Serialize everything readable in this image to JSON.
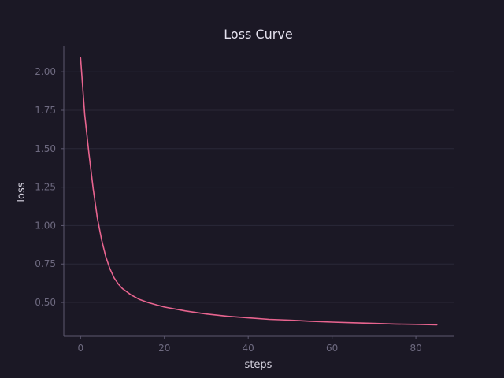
{
  "chart_data": {
    "type": "line",
    "title": "Loss Curve",
    "xlabel": "steps",
    "ylabel": "loss",
    "xlim": [
      -4,
      89
    ],
    "ylim": [
      0.28,
      2.17
    ],
    "xticks": [
      0,
      20,
      40,
      60,
      80
    ],
    "yticks": [
      0.5,
      0.75,
      1.0,
      1.25,
      1.5,
      1.75,
      2.0
    ],
    "xtick_labels": [
      "0",
      "20",
      "40",
      "60",
      "80"
    ],
    "ytick_labels": [
      "0.50",
      "0.75",
      "1.00",
      "1.25",
      "1.50",
      "1.75",
      "2.00"
    ],
    "grid": "horizontal",
    "series": [
      {
        "name": "loss",
        "color": "#e8648f",
        "x": [
          0,
          1,
          2,
          3,
          4,
          5,
          6,
          7,
          8,
          9,
          10,
          12,
          14,
          16,
          18,
          20,
          25,
          30,
          35,
          40,
          45,
          50,
          55,
          60,
          65,
          70,
          75,
          80,
          85
        ],
        "y": [
          2.09,
          1.72,
          1.47,
          1.24,
          1.05,
          0.91,
          0.8,
          0.72,
          0.66,
          0.62,
          0.59,
          0.55,
          0.52,
          0.5,
          0.485,
          0.47,
          0.445,
          0.425,
          0.41,
          0.4,
          0.39,
          0.385,
          0.378,
          0.372,
          0.368,
          0.364,
          0.36,
          0.358,
          0.355
        ]
      }
    ]
  },
  "colors": {
    "background": "#1b1825",
    "axis": "#5d5970",
    "grid": "#2b2838",
    "line": "#e8648f"
  }
}
